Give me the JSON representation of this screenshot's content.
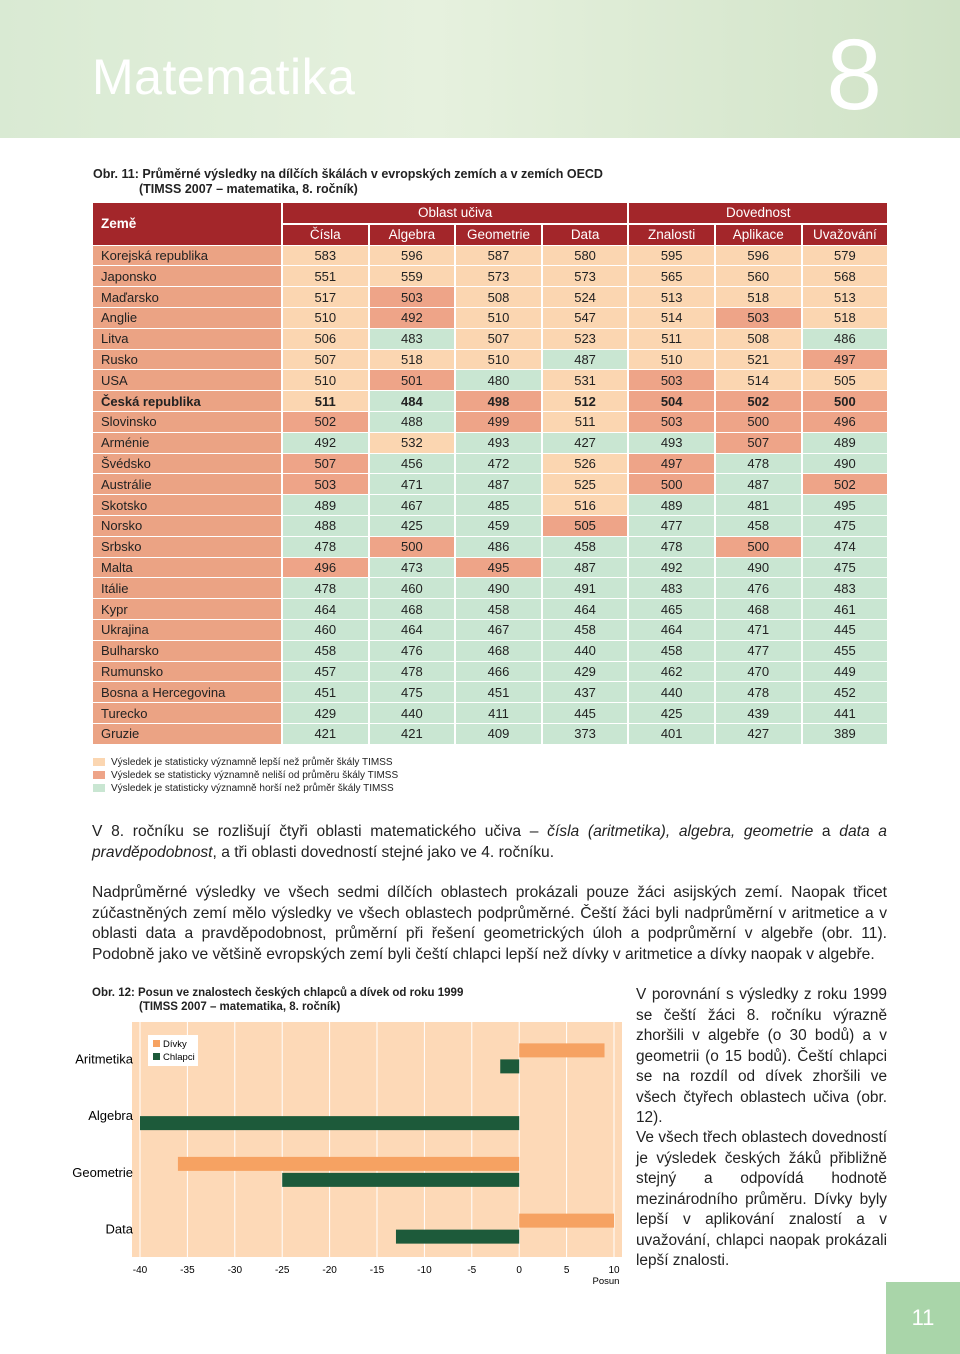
{
  "header": {
    "title": "Matematika",
    "chapter": "8"
  },
  "table": {
    "caption": [
      "Obr. 11: Průměrné výsledky na dílčích škálách v evropských zemích a v zemích OECD",
      "(TIMSS 2007 – matematika, 8. ročník)"
    ],
    "country_header": "Země",
    "group_headers": [
      "Oblast učiva",
      "Dovednost"
    ],
    "columns": [
      "Čísla",
      "Algebra",
      "Geometrie",
      "Data",
      "Znalosti",
      "Aplikace",
      "Uvažování"
    ],
    "rows": [
      {
        "name": "Korejská republika",
        "values": [
          583,
          596,
          587,
          580,
          595,
          596,
          579
        ]
      },
      {
        "name": "Japonsko",
        "values": [
          551,
          559,
          573,
          573,
          565,
          560,
          568
        ]
      },
      {
        "name": "Maďarsko",
        "values": [
          517,
          503,
          508,
          524,
          513,
          518,
          513
        ]
      },
      {
        "name": "Anglie",
        "values": [
          510,
          492,
          510,
          547,
          514,
          503,
          518
        ]
      },
      {
        "name": "Litva",
        "values": [
          506,
          483,
          507,
          523,
          511,
          508,
          486
        ]
      },
      {
        "name": "Rusko",
        "values": [
          507,
          518,
          510,
          487,
          510,
          521,
          497
        ]
      },
      {
        "name": "USA",
        "values": [
          510,
          501,
          480,
          531,
          503,
          514,
          505
        ]
      },
      {
        "name": "Česká republika",
        "values": [
          511,
          484,
          498,
          512,
          504,
          502,
          500
        ]
      },
      {
        "name": "Slovinsko",
        "values": [
          502,
          488,
          499,
          511,
          503,
          500,
          496
        ]
      },
      {
        "name": "Arménie",
        "values": [
          492,
          532,
          493,
          427,
          493,
          507,
          489
        ]
      },
      {
        "name": "Švédsko",
        "values": [
          507,
          456,
          472,
          526,
          497,
          478,
          490
        ]
      },
      {
        "name": "Austrálie",
        "values": [
          503,
          471,
          487,
          525,
          500,
          487,
          502
        ]
      },
      {
        "name": "Skotsko",
        "values": [
          489,
          467,
          485,
          516,
          489,
          481,
          495
        ]
      },
      {
        "name": "Norsko",
        "values": [
          488,
          425,
          459,
          505,
          477,
          458,
          475
        ]
      },
      {
        "name": "Srbsko",
        "values": [
          478,
          500,
          486,
          458,
          478,
          500,
          474
        ]
      },
      {
        "name": "Malta",
        "values": [
          496,
          473,
          495,
          487,
          492,
          490,
          475
        ]
      },
      {
        "name": "Itálie",
        "values": [
          478,
          460,
          490,
          491,
          483,
          476,
          483
        ]
      },
      {
        "name": "Kypr",
        "values": [
          464,
          468,
          458,
          464,
          465,
          468,
          461
        ]
      },
      {
        "name": "Ukrajina",
        "values": [
          460,
          464,
          467,
          458,
          464,
          471,
          445
        ]
      },
      {
        "name": "Bulharsko",
        "values": [
          458,
          476,
          468,
          440,
          458,
          477,
          455
        ]
      },
      {
        "name": "Rumunsko",
        "values": [
          457,
          478,
          466,
          429,
          462,
          470,
          449
        ]
      },
      {
        "name": "Bosna a Hercegovina",
        "values": [
          451,
          475,
          451,
          437,
          440,
          478,
          452
        ]
      },
      {
        "name": "Turecko",
        "values": [
          429,
          440,
          411,
          445,
          425,
          439,
          441
        ]
      },
      {
        "name": "Gruzie",
        "values": [
          421,
          421,
          409,
          373,
          401,
          427,
          389
        ]
      }
    ],
    "legend": [
      "Výsledek je statisticky významně lepší než průměr škály TIMSS",
      "Výsledek se statisticky významně neliší od průměru škály TIMSS",
      "Výsledek je statisticky významně horší než průměr škály TIMSS"
    ]
  },
  "paragraphs": [
    [
      "V 8. ročníku se rozlišují čtyři oblasti matematického učiva – ",
      "čísla (aritmetika), algebra, geometrie",
      " a ",
      "data a pravděpodobnost",
      ", a tři oblasti dovedností stejné jako ve 4. ročníku."
    ],
    [
      "Nadprůměrné výsledky ve všech sedmi dílčích oblastech prokázali pouze žáci asijských zemí. Naopak třicet zúčastněných zemí mělo výsledky ve všech oblastech podprůměrné. Čeští žáci byli nadprůměrní v aritmetice a v oblasti data a pravděpodobnost, průměrní při řešení geometrických úloh a podprůměrní v algebře (obr. 11). Podobně jako ve většině evropských zemí byli čeští chlapci lepší než dívky v aritmetice a dívky naopak v algebře."
    ]
  ],
  "chart_data": {
    "type": "bar",
    "orientation": "horizontal",
    "title": [
      "Obr. 12: Posun ve znalostech českých chlapců a dívek od roku 1999",
      "(TIMSS 2007 – matematika, 8. ročník)"
    ],
    "categories": [
      "Aritmetika",
      "Algebra",
      "Geometrie",
      "Data"
    ],
    "series": [
      {
        "name": "Dívky",
        "color": "#f6a262",
        "values": [
          9,
          null,
          -36,
          10
        ]
      },
      {
        "name": "Chlapci",
        "color": "#1d5a3a",
        "values": [
          -2,
          -40,
          -25,
          -13
        ]
      }
    ],
    "xlim": [
      -40,
      10
    ],
    "xticks": [
      -40,
      -35,
      -30,
      -25,
      -20,
      -15,
      -10,
      -5,
      0,
      5,
      10
    ],
    "xlabel": "Posun",
    "grid": true,
    "legend_position": "upper left"
  },
  "side_paragraphs": [
    "V porovnání s výsledky z roku 1999 se čeští žáci 8. ročníku výrazně zhoršili v algebře (o 30 bodů) a v geometrii (o 15 bodů). Čeští chlapci se na rozdíl od dívek zhoršili ve všech čtyřech oblastech učiva (obr. 12).",
    "Ve všech třech oblastech dovedností je výsledek českých žáků přibližně stejný a odpovídá hodnotě mezinárodního průměru. Dívky byly lepší v aplikování znalostí a v uvažování, chlapci naopak prokázali lepší znalosti."
  ],
  "page_number": "11"
}
